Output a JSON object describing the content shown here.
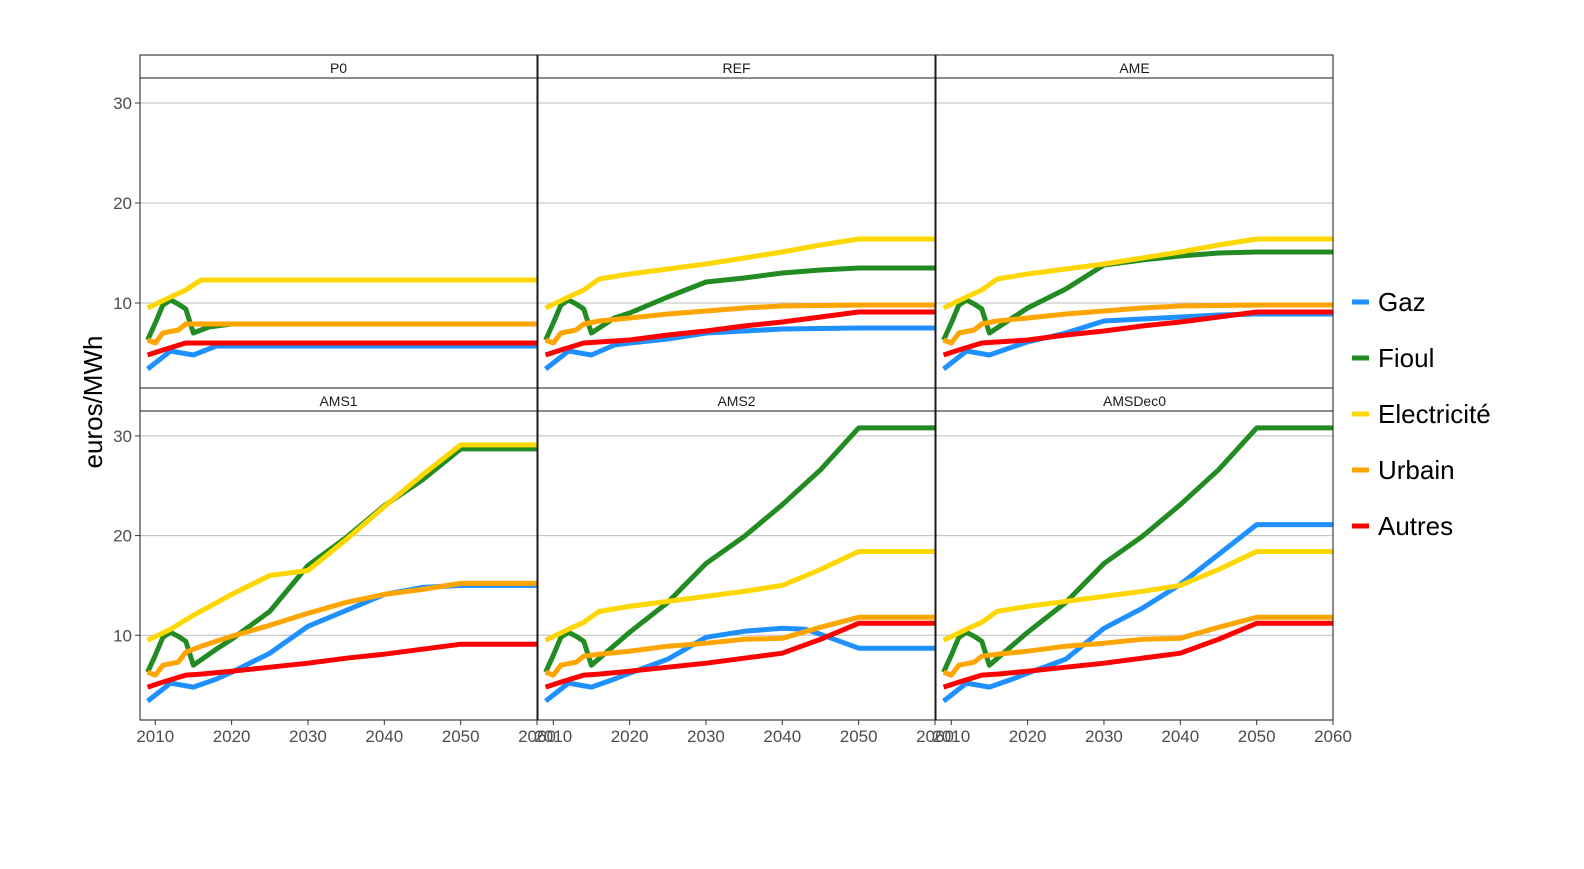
{
  "chart_data": {
    "type": "line",
    "ylabel": "euros/MWh",
    "xlabel": "",
    "xlim": [
      2008,
      2060
    ],
    "ylim": [
      1.5,
      32.5
    ],
    "xticks": [
      2010,
      2020,
      2030,
      2040,
      2050,
      2060
    ],
    "yticks": [
      10,
      20,
      30
    ],
    "legend_position": "right",
    "legend": [
      {
        "name": "Gaz",
        "color": "#1E90FF"
      },
      {
        "name": "Fioul",
        "color": "#228B22"
      },
      {
        "name": "Electricité",
        "color": "#FFD700"
      },
      {
        "name": "Urbain",
        "color": "#FFA500"
      },
      {
        "name": "Autres",
        "color": "#FF0000"
      }
    ],
    "panels": [
      {
        "title": "P0",
        "series": [
          {
            "name": "Gaz",
            "x": [
              2009,
              2012,
              2015,
              2018,
              2050,
              2060
            ],
            "y": [
              3.4,
              5.2,
              4.8,
              5.7,
              5.7,
              5.7
            ]
          },
          {
            "name": "Fioul",
            "x": [
              2009,
              2010,
              2011,
              2012,
              2013,
              2014,
              2015,
              2017,
              2020,
              2050,
              2060
            ],
            "y": [
              6.3,
              8.0,
              9.8,
              10.3,
              9.9,
              9.4,
              7.0,
              7.6,
              7.9,
              7.9,
              7.9
            ]
          },
          {
            "name": "Electricité",
            "x": [
              2009,
              2012,
              2014,
              2016,
              2020,
              2050,
              2060
            ],
            "y": [
              9.5,
              10.6,
              11.3,
              12.3,
              12.3,
              12.3,
              12.3
            ]
          },
          {
            "name": "Urbain",
            "x": [
              2009,
              2010,
              2011,
              2013,
              2014,
              2016,
              2020,
              2050,
              2060
            ],
            "y": [
              6.3,
              6.0,
              7.0,
              7.3,
              7.9,
              7.9,
              7.9,
              7.9,
              7.9
            ]
          },
          {
            "name": "Autres",
            "x": [
              2009,
              2011,
              2014,
              2016,
              2020,
              2050,
              2060
            ],
            "y": [
              4.8,
              5.3,
              6.0,
              6.0,
              6.0,
              6.0,
              6.0
            ]
          }
        ]
      },
      {
        "title": "REF",
        "series": [
          {
            "name": "Gaz",
            "x": [
              2009,
              2012,
              2015,
              2018,
              2020,
              2025,
              2030,
              2040,
              2050,
              2060
            ],
            "y": [
              3.4,
              5.2,
              4.8,
              5.8,
              6.0,
              6.4,
              7.0,
              7.4,
              7.5,
              7.5
            ]
          },
          {
            "name": "Fioul",
            "x": [
              2009,
              2010,
              2011,
              2012,
              2013,
              2014,
              2015,
              2018,
              2020,
              2025,
              2030,
              2035,
              2040,
              2045,
              2050,
              2060
            ],
            "y": [
              6.3,
              8.0,
              9.8,
              10.3,
              9.9,
              9.4,
              7.0,
              8.5,
              9.0,
              10.6,
              12.1,
              12.5,
              13.0,
              13.3,
              13.5,
              13.5
            ]
          },
          {
            "name": "Electricité",
            "x": [
              2009,
              2012,
              2014,
              2016,
              2020,
              2025,
              2030,
              2035,
              2040,
              2045,
              2050,
              2060
            ],
            "y": [
              9.5,
              10.6,
              11.3,
              12.4,
              12.9,
              13.4,
              13.9,
              14.5,
              15.1,
              15.8,
              16.4,
              16.4
            ]
          },
          {
            "name": "Urbain",
            "x": [
              2009,
              2010,
              2011,
              2013,
              2014,
              2016,
              2020,
              2025,
              2030,
              2035,
              2040,
              2050,
              2060
            ],
            "y": [
              6.3,
              6.0,
              7.0,
              7.3,
              7.9,
              8.2,
              8.5,
              8.9,
              9.2,
              9.5,
              9.7,
              9.8,
              9.8
            ]
          },
          {
            "name": "Autres",
            "x": [
              2009,
              2011,
              2014,
              2016,
              2020,
              2025,
              2030,
              2035,
              2040,
              2045,
              2050,
              2060
            ],
            "y": [
              4.8,
              5.3,
              6.0,
              6.1,
              6.3,
              6.8,
              7.2,
              7.7,
              8.1,
              8.6,
              9.1,
              9.1
            ]
          }
        ]
      },
      {
        "title": "AME",
        "series": [
          {
            "name": "Gaz",
            "x": [
              2009,
              2012,
              2015,
              2018,
              2020,
              2025,
              2030,
              2035,
              2040,
              2045,
              2050,
              2060
            ],
            "y": [
              3.4,
              5.2,
              4.8,
              5.6,
              6.1,
              7.0,
              8.2,
              8.4,
              8.6,
              8.8,
              8.9,
              8.9
            ]
          },
          {
            "name": "Fioul",
            "x": [
              2009,
              2010,
              2011,
              2012,
              2013,
              2014,
              2015,
              2018,
              2020,
              2025,
              2030,
              2035,
              2040,
              2045,
              2050,
              2060
            ],
            "y": [
              6.3,
              8.0,
              9.8,
              10.3,
              9.9,
              9.4,
              7.0,
              8.5,
              9.5,
              11.4,
              13.8,
              14.3,
              14.7,
              15.0,
              15.1,
              15.1
            ]
          },
          {
            "name": "Electricité",
            "x": [
              2009,
              2012,
              2014,
              2016,
              2020,
              2025,
              2030,
              2035,
              2040,
              2045,
              2050,
              2060
            ],
            "y": [
              9.5,
              10.6,
              11.3,
              12.4,
              12.9,
              13.4,
              13.9,
              14.5,
              15.1,
              15.8,
              16.4,
              16.4
            ]
          },
          {
            "name": "Urbain",
            "x": [
              2009,
              2010,
              2011,
              2013,
              2014,
              2016,
              2020,
              2025,
              2030,
              2035,
              2040,
              2050,
              2060
            ],
            "y": [
              6.3,
              6.0,
              7.0,
              7.3,
              7.9,
              8.2,
              8.5,
              8.9,
              9.2,
              9.5,
              9.7,
              9.8,
              9.8
            ]
          },
          {
            "name": "Autres",
            "x": [
              2009,
              2011,
              2014,
              2016,
              2020,
              2025,
              2030,
              2035,
              2040,
              2045,
              2050,
              2060
            ],
            "y": [
              4.8,
              5.3,
              6.0,
              6.1,
              6.3,
              6.8,
              7.2,
              7.7,
              8.1,
              8.6,
              9.1,
              9.1
            ]
          }
        ]
      },
      {
        "title": "AMS1",
        "series": [
          {
            "name": "Gaz",
            "x": [
              2009,
              2012,
              2015,
              2018,
              2020,
              2025,
              2030,
              2035,
              2040,
              2045,
              2050,
              2060
            ],
            "y": [
              3.4,
              5.2,
              4.8,
              5.6,
              6.3,
              8.2,
              10.9,
              12.5,
              14.1,
              14.8,
              15.0,
              15.0
            ]
          },
          {
            "name": "Fioul",
            "x": [
              2009,
              2010,
              2011,
              2012,
              2013,
              2014,
              2015,
              2018,
              2020,
              2025,
              2030,
              2035,
              2040,
              2045,
              2050,
              2060
            ],
            "y": [
              6.3,
              8.0,
              9.8,
              10.3,
              9.9,
              9.4,
              7.0,
              8.6,
              9.6,
              12.4,
              17.0,
              19.8,
              23.0,
              25.6,
              28.7,
              28.7
            ]
          },
          {
            "name": "Electricité",
            "x": [
              2009,
              2012,
              2015,
              2020,
              2025,
              2030,
              2035,
              2040,
              2045,
              2050,
              2060
            ],
            "y": [
              9.5,
              10.6,
              12.0,
              14.1,
              16.0,
              16.5,
              19.6,
              22.9,
              26.1,
              29.1,
              29.1
            ]
          },
          {
            "name": "Urbain",
            "x": [
              2009,
              2010,
              2011,
              2013,
              2014,
              2016,
              2020,
              2025,
              2030,
              2035,
              2040,
              2045,
              2050,
              2060
            ],
            "y": [
              6.3,
              6.0,
              7.0,
              7.3,
              8.3,
              8.9,
              9.9,
              11.0,
              12.2,
              13.3,
              14.1,
              14.6,
              15.2,
              15.2
            ]
          },
          {
            "name": "Autres",
            "x": [
              2009,
              2011,
              2014,
              2016,
              2020,
              2025,
              2030,
              2035,
              2040,
              2045,
              2050,
              2060
            ],
            "y": [
              4.8,
              5.3,
              6.0,
              6.1,
              6.4,
              6.8,
              7.2,
              7.7,
              8.1,
              8.6,
              9.1,
              9.1
            ]
          }
        ]
      },
      {
        "title": "AMS2",
        "series": [
          {
            "name": "Gaz",
            "x": [
              2009,
              2012,
              2015,
              2018,
              2020,
              2025,
              2030,
              2035,
              2040,
              2043,
              2045,
              2050,
              2060
            ],
            "y": [
              3.4,
              5.2,
              4.8,
              5.6,
              6.2,
              7.6,
              9.8,
              10.4,
              10.7,
              10.6,
              10.1,
              8.7,
              8.7
            ]
          },
          {
            "name": "Fioul",
            "x": [
              2009,
              2010,
              2011,
              2012,
              2013,
              2014,
              2015,
              2020,
              2025,
              2030,
              2035,
              2040,
              2045,
              2050,
              2060
            ],
            "y": [
              6.3,
              8.0,
              9.8,
              10.3,
              9.9,
              9.4,
              7.0,
              10.3,
              13.3,
              17.2,
              19.9,
              23.1,
              26.6,
              30.8,
              30.8
            ]
          },
          {
            "name": "Electricité",
            "x": [
              2009,
              2012,
              2014,
              2016,
              2020,
              2025,
              2030,
              2035,
              2040,
              2045,
              2050,
              2060
            ],
            "y": [
              9.5,
              10.6,
              11.3,
              12.4,
              12.9,
              13.4,
              13.9,
              14.4,
              15.0,
              16.6,
              18.4,
              18.4
            ]
          },
          {
            "name": "Urbain",
            "x": [
              2009,
              2010,
              2011,
              2013,
              2014,
              2016,
              2020,
              2025,
              2030,
              2035,
              2040,
              2045,
              2050,
              2060
            ],
            "y": [
              6.3,
              6.0,
              7.0,
              7.3,
              7.9,
              8.1,
              8.4,
              8.9,
              9.2,
              9.6,
              9.7,
              10.8,
              11.8,
              11.8
            ]
          },
          {
            "name": "Autres",
            "x": [
              2009,
              2011,
              2014,
              2016,
              2020,
              2025,
              2030,
              2035,
              2040,
              2045,
              2050,
              2060
            ],
            "y": [
              4.8,
              5.3,
              6.0,
              6.1,
              6.4,
              6.8,
              7.2,
              7.7,
              8.2,
              9.6,
              11.2,
              11.2
            ]
          }
        ]
      },
      {
        "title": "AMSDec0",
        "series": [
          {
            "name": "Gaz",
            "x": [
              2009,
              2012,
              2015,
              2018,
              2020,
              2025,
              2030,
              2035,
              2040,
              2045,
              2050,
              2060
            ],
            "y": [
              3.4,
              5.2,
              4.8,
              5.6,
              6.2,
              7.6,
              10.7,
              12.7,
              15.1,
              18.1,
              21.1,
              21.1
            ]
          },
          {
            "name": "Fioul",
            "x": [
              2009,
              2010,
              2011,
              2012,
              2013,
              2014,
              2015,
              2020,
              2025,
              2030,
              2035,
              2040,
              2045,
              2050,
              2060
            ],
            "y": [
              6.3,
              8.0,
              9.8,
              10.3,
              9.9,
              9.4,
              7.0,
              10.3,
              13.3,
              17.2,
              19.9,
              23.1,
              26.6,
              30.8,
              30.8
            ]
          },
          {
            "name": "Electricité",
            "x": [
              2009,
              2012,
              2014,
              2016,
              2020,
              2025,
              2030,
              2035,
              2040,
              2045,
              2050,
              2060
            ],
            "y": [
              9.5,
              10.6,
              11.3,
              12.4,
              12.9,
              13.4,
              13.9,
              14.4,
              15.0,
              16.6,
              18.4,
              18.4
            ]
          },
          {
            "name": "Urbain",
            "x": [
              2009,
              2010,
              2011,
              2013,
              2014,
              2016,
              2020,
              2025,
              2030,
              2035,
              2040,
              2045,
              2050,
              2060
            ],
            "y": [
              6.3,
              6.0,
              7.0,
              7.3,
              7.9,
              8.1,
              8.4,
              8.9,
              9.2,
              9.6,
              9.7,
              10.8,
              11.8,
              11.8
            ]
          },
          {
            "name": "Autres",
            "x": [
              2009,
              2011,
              2014,
              2016,
              2020,
              2025,
              2030,
              2035,
              2040,
              2045,
              2050,
              2060
            ],
            "y": [
              4.8,
              5.3,
              6.0,
              6.1,
              6.4,
              6.8,
              7.2,
              7.7,
              8.2,
              9.6,
              11.2,
              11.2
            ]
          }
        ]
      }
    ]
  }
}
